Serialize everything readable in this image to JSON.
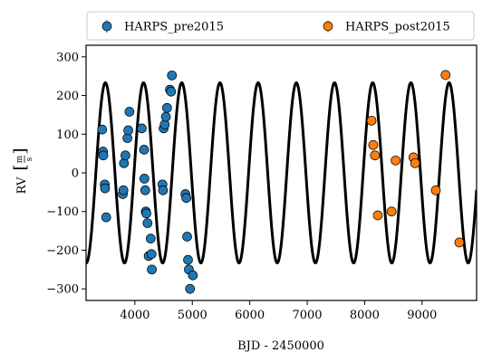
{
  "chart_data": {
    "type": "scatter",
    "xlabel": "BJD - 2450000",
    "ylabel": "RV",
    "ylabel_unit_num": "m",
    "ylabel_unit_den": "s",
    "xlim": [
      3150,
      9950
    ],
    "ylim": [
      -330,
      330
    ],
    "xticks": [
      4000,
      5000,
      6000,
      7000,
      8000,
      9000
    ],
    "yticks": [
      -300,
      -200,
      -100,
      0,
      100,
      200,
      300
    ],
    "xtick_labels": [
      "4000",
      "5000",
      "6000",
      "7000",
      "8000",
      "9000"
    ],
    "ytick_labels": [
      "−300",
      "−200",
      "−100",
      "0",
      "100",
      "200",
      "300"
    ],
    "legend_position": "top",
    "model": {
      "type": "sinusoid",
      "amplitude": 233,
      "period": 665,
      "phase_ref_x": 3320,
      "offset": 0,
      "color": "#000000"
    },
    "series": [
      {
        "name": "HARPS_pre2015",
        "color": "#1f77b4",
        "points": [
          [
            3430,
            112
          ],
          [
            3445,
            55
          ],
          [
            3450,
            45
          ],
          [
            3475,
            -30
          ],
          [
            3480,
            -40
          ],
          [
            3500,
            -115
          ],
          [
            3790,
            -55
          ],
          [
            3800,
            -45
          ],
          [
            3810,
            25
          ],
          [
            3835,
            45
          ],
          [
            3870,
            90
          ],
          [
            3885,
            110
          ],
          [
            3905,
            158
          ],
          [
            4120,
            115
          ],
          [
            4160,
            60
          ],
          [
            4165,
            -15
          ],
          [
            4180,
            -45
          ],
          [
            4190,
            -100
          ],
          [
            4200,
            -105
          ],
          [
            4220,
            -130
          ],
          [
            4240,
            -215
          ],
          [
            4275,
            -170
          ],
          [
            4290,
            -210
          ],
          [
            4295,
            -250
          ],
          [
            4480,
            -30
          ],
          [
            4490,
            -45
          ],
          [
            4500,
            115
          ],
          [
            4520,
            125
          ],
          [
            4540,
            145
          ],
          [
            4560,
            168
          ],
          [
            4610,
            215
          ],
          [
            4630,
            210
          ],
          [
            4645,
            252
          ],
          [
            4880,
            -55
          ],
          [
            4895,
            -65
          ],
          [
            4910,
            -165
          ],
          [
            4925,
            -225
          ],
          [
            4940,
            -250
          ],
          [
            4960,
            -300
          ],
          [
            5010,
            -265
          ]
        ]
      },
      {
        "name": "HARPS_post2015",
        "color": "#ff7f0e",
        "points": [
          [
            8120,
            135
          ],
          [
            8150,
            72
          ],
          [
            8180,
            45
          ],
          [
            8230,
            -110
          ],
          [
            8470,
            -100
          ],
          [
            8540,
            32
          ],
          [
            8850,
            40
          ],
          [
            8880,
            25
          ],
          [
            9240,
            -45
          ],
          [
            9410,
            253
          ],
          [
            9650,
            -180
          ]
        ]
      }
    ]
  }
}
